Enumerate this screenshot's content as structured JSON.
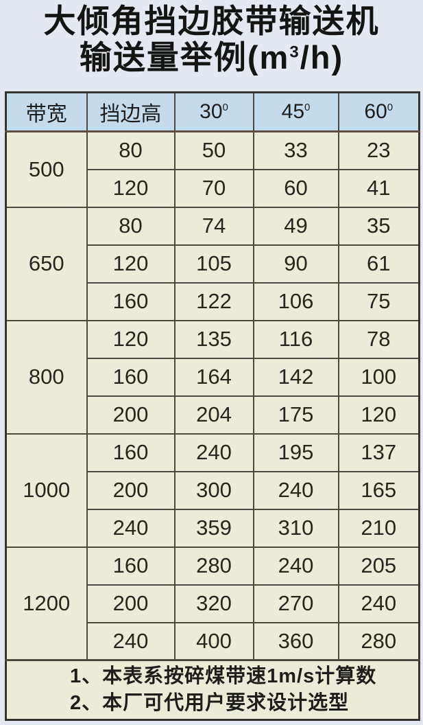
{
  "title": {
    "line1": "大倾角挡边胶带输送机",
    "line2_prefix": "输送量举例(m",
    "line2_sup": "3",
    "line2_suffix": "/h)"
  },
  "table": {
    "headers": {
      "belt_width": "带宽",
      "side_height": "挡边高",
      "angles": [
        {
          "value": "30",
          "sup": "0"
        },
        {
          "value": "45",
          "sup": "0"
        },
        {
          "value": "60",
          "sup": "0"
        }
      ]
    },
    "groups": [
      {
        "width": "500",
        "rows": [
          {
            "height": "80",
            "v30": "50",
            "v45": "33",
            "v60": "23"
          },
          {
            "height": "120",
            "v30": "70",
            "v45": "60",
            "v60": "41"
          }
        ]
      },
      {
        "width": "650",
        "rows": [
          {
            "height": "80",
            "v30": "74",
            "v45": "49",
            "v60": "35"
          },
          {
            "height": "120",
            "v30": "105",
            "v45": "90",
            "v60": "61"
          },
          {
            "height": "160",
            "v30": "122",
            "v45": "106",
            "v60": "75"
          }
        ]
      },
      {
        "width": "800",
        "rows": [
          {
            "height": "120",
            "v30": "135",
            "v45": "116",
            "v60": "78"
          },
          {
            "height": "160",
            "v30": "164",
            "v45": "142",
            "v60": "100"
          },
          {
            "height": "200",
            "v30": "204",
            "v45": "175",
            "v60": "120"
          }
        ]
      },
      {
        "width": "1000",
        "rows": [
          {
            "height": "160",
            "v30": "240",
            "v45": "195",
            "v60": "137"
          },
          {
            "height": "200",
            "v30": "300",
            "v45": "240",
            "v60": "165"
          },
          {
            "height": "240",
            "v30": "359",
            "v45": "310",
            "v60": "210"
          }
        ]
      },
      {
        "width": "1200",
        "rows": [
          {
            "height": "160",
            "v30": "280",
            "v45": "240",
            "v60": "205"
          },
          {
            "height": "200",
            "v30": "320",
            "v45": "270",
            "v60": "240"
          },
          {
            "height": "240",
            "v30": "400",
            "v45": "360",
            "v60": "280"
          }
        ]
      }
    ]
  },
  "notes": [
    "1、本表系按碎煤带速1m/s计算数",
    "2、本厂可代用户要求设计选型"
  ]
}
